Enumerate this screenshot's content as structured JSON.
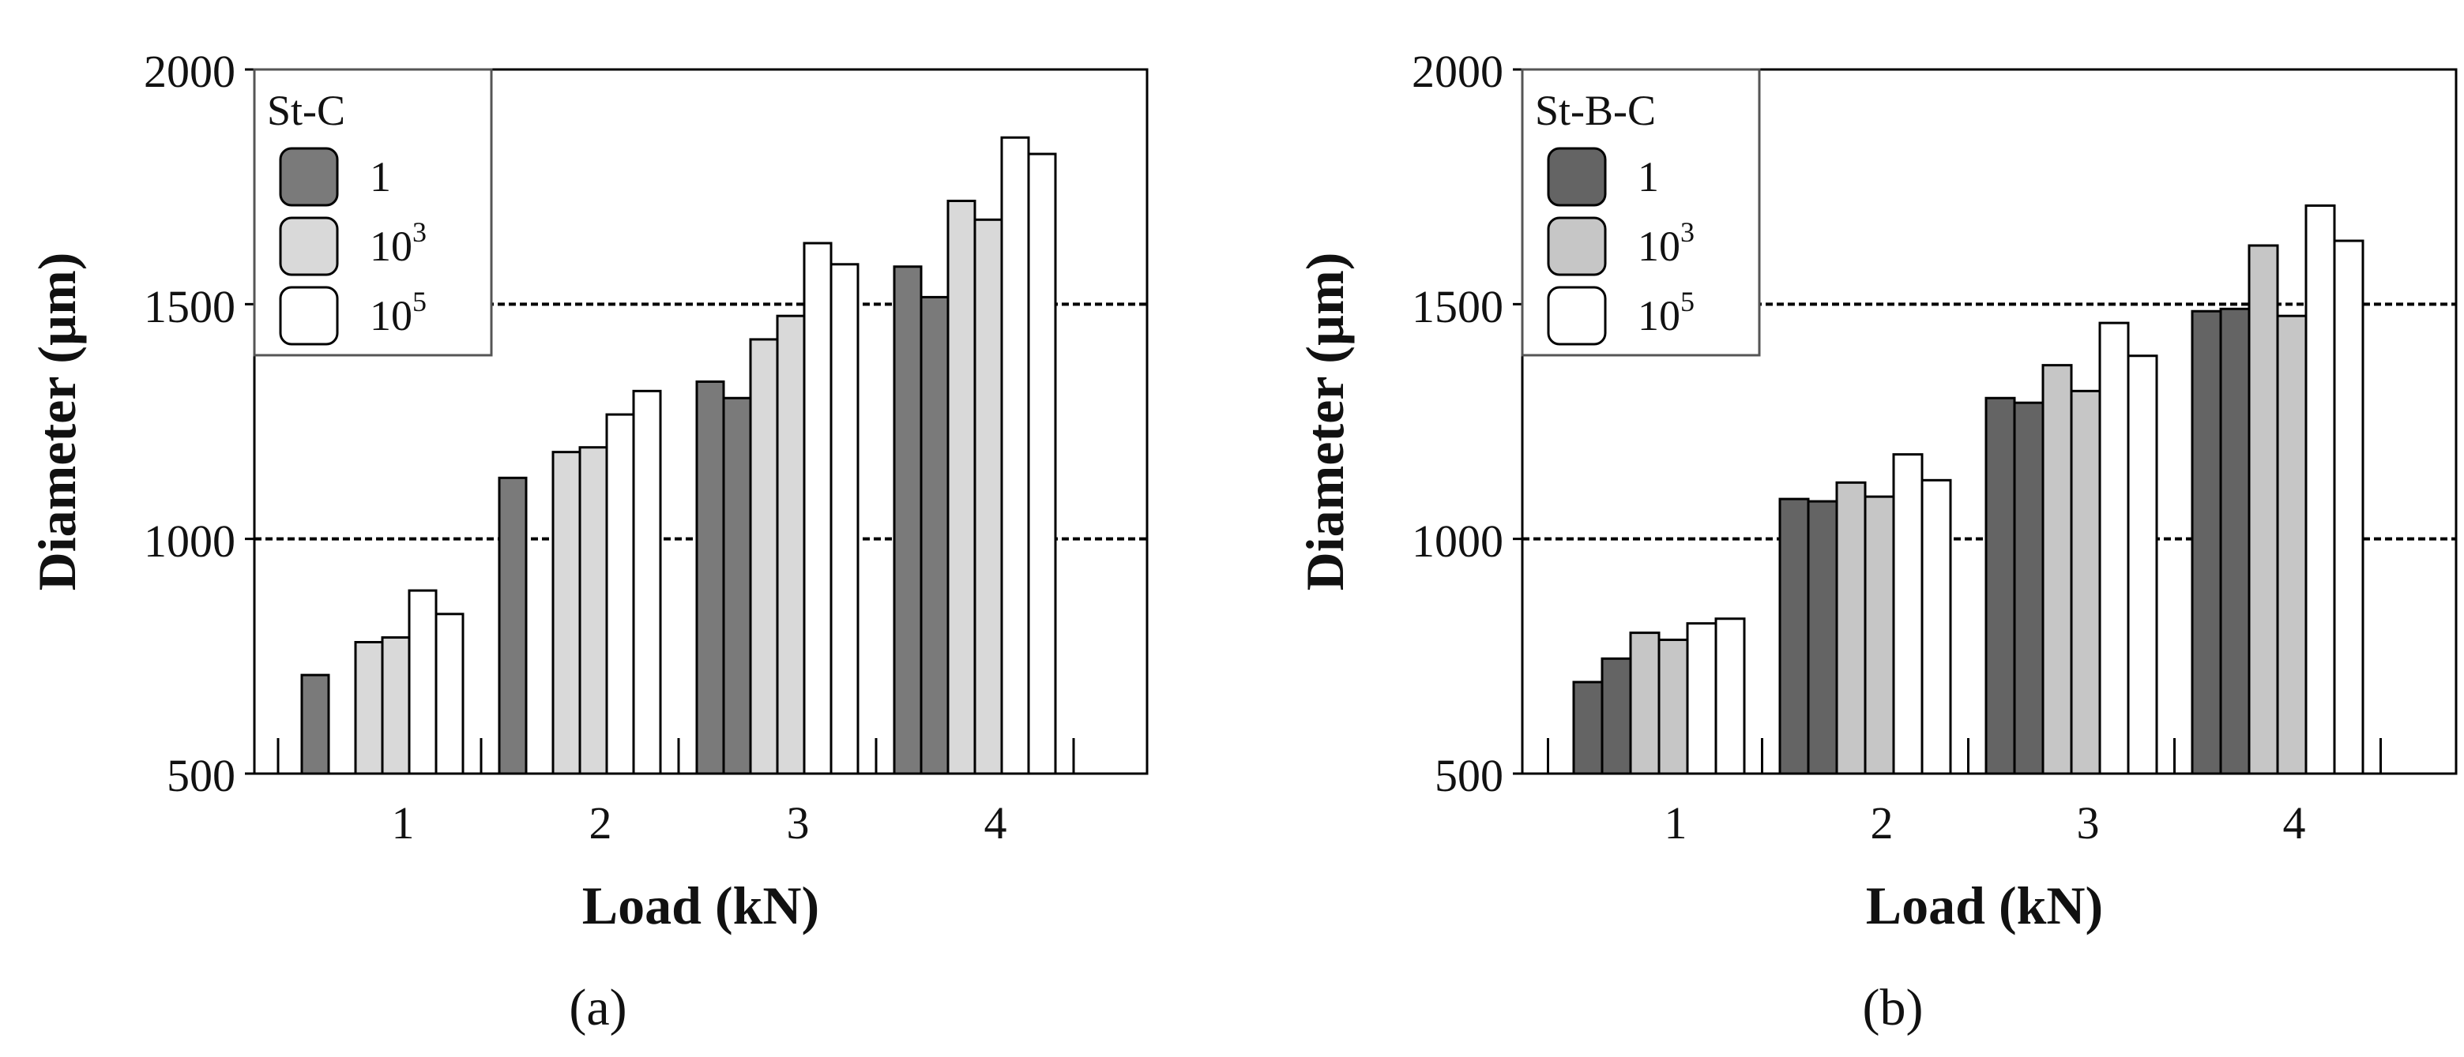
{
  "chart_data": [
    {
      "type": "bar",
      "panel_label": "(a)",
      "categories": [
        "1",
        "2",
        "3",
        "4"
      ],
      "xlabel": "Load (kN)",
      "ylabel": "Diameter (µm)",
      "ylim": [
        500,
        2000
      ],
      "yticks": [
        "500",
        "1000",
        "1500",
        "2000"
      ],
      "reference_lines": [
        1000,
        1500
      ],
      "legend": {
        "title": "St-C",
        "position": "top-left",
        "entries": [
          {
            "base": "1",
            "exp": ""
          },
          {
            "base": "10",
            "exp": "3"
          },
          {
            "base": "10",
            "exp": "5"
          }
        ]
      },
      "series": [
        {
          "name": "1",
          "color": "#7a7a7a",
          "values": [
            [
              710,
              null
            ],
            [
              1130,
              null
            ],
            [
              1335,
              1300
            ],
            [
              1580,
              1515
            ]
          ]
        },
        {
          "name": "10^3",
          "color": "#d9d9d9",
          "values": [
            [
              780,
              790
            ],
            [
              1185,
              1195
            ],
            [
              1425,
              1475
            ],
            [
              1720,
              1680
            ]
          ]
        },
        {
          "name": "10^5",
          "color": "#ffffff",
          "values": [
            [
              890,
              840
            ],
            [
              1265,
              1315
            ],
            [
              1630,
              1585
            ],
            [
              1855,
              1820
            ]
          ]
        }
      ]
    },
    {
      "type": "bar",
      "panel_label": "(b)",
      "categories": [
        "1",
        "2",
        "3",
        "4"
      ],
      "xlabel": "Load (kN)",
      "ylabel": "Diameter (µm)",
      "ylim": [
        500,
        2000
      ],
      "yticks": [
        "500",
        "1000",
        "1500",
        "2000"
      ],
      "reference_lines": [
        1000,
        1500
      ],
      "legend": {
        "title": "St-B-C",
        "position": "top-left",
        "entries": [
          {
            "base": "1",
            "exp": ""
          },
          {
            "base": "10",
            "exp": "3"
          },
          {
            "base": "10",
            "exp": "5"
          }
        ]
      },
      "series": [
        {
          "name": "1",
          "color": "#646464",
          "values": [
            [
              695,
              745
            ],
            [
              1085,
              1080
            ],
            [
              1300,
              1290
            ],
            [
              1485,
              1490
            ]
          ]
        },
        {
          "name": "10^3",
          "color": "#c6c6c6",
          "values": [
            [
              800,
              785
            ],
            [
              1120,
              1090
            ],
            [
              1370,
              1315
            ],
            [
              1625,
              1475
            ]
          ]
        },
        {
          "name": "10^5",
          "color": "#ffffff",
          "values": [
            [
              820,
              830
            ],
            [
              1180,
              1125
            ],
            [
              1460,
              1390
            ],
            [
              1710,
              1635
            ]
          ]
        }
      ]
    }
  ]
}
